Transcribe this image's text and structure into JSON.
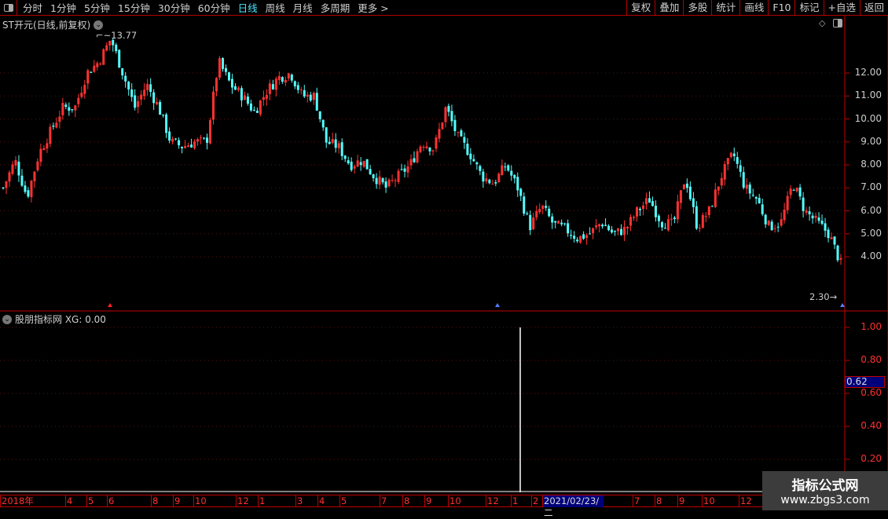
{
  "toolbar": {
    "periods": [
      "分时",
      "1分钟",
      "5分钟",
      "15分钟",
      "30分钟",
      "60分钟",
      "日线",
      "周线",
      "月线",
      "多周期",
      "更多 >"
    ],
    "active_period": "日线",
    "right_buttons": [
      "复权",
      "叠加",
      "多股",
      "统计",
      "画线",
      "F10",
      "标记",
      "+自选",
      "返回"
    ]
  },
  "main": {
    "title": "ST开元(日线,前复权)",
    "max_label": "13.77",
    "min_label": "2.30",
    "price_ticks": [
      "12.00",
      "11.00",
      "10.00",
      "9.00",
      "8.00",
      "7.00",
      "6.00",
      "5.00",
      "4.00"
    ]
  },
  "indicator": {
    "title": "股朋指标网 XG: 0.00",
    "ticks": [
      "1.00",
      "0.80",
      "0.60",
      "0.40",
      "0.20"
    ],
    "current_value": "0.62"
  },
  "time_axis": [
    "2018年",
    "4",
    "5",
    "6",
    "8",
    "9",
    "10",
    "12",
    "1",
    "3",
    "4",
    "5",
    "7",
    "8",
    "9",
    "10",
    "12",
    "1",
    "2",
    "2021/02/23/二",
    "7",
    "8",
    "9",
    "10",
    "12"
  ],
  "watermark": {
    "name": "指标公式网",
    "url": "www.zbgs3.com"
  },
  "colors": {
    "up": "#ff3232",
    "down": "#54ffff",
    "axis": "#c00000",
    "selected_bg": "#00007a"
  },
  "chart_data": {
    "type": "candlestick",
    "ylim": [
      2.3,
      13.77
    ],
    "close_path": [
      7.0,
      8.2,
      6.6,
      8.5,
      9.5,
      10.5,
      10.5,
      12.0,
      12.5,
      13.5,
      12.0,
      10.5,
      11.5,
      10.5,
      9.0,
      8.8,
      9.0,
      9.0,
      12.5,
      11.5,
      11.0,
      10.3,
      11.2,
      11.8,
      12.0,
      11.0,
      11.0,
      9.0,
      8.8,
      8.0,
      8.2,
      7.5,
      7.0,
      7.5,
      8.0,
      9.0,
      8.7,
      10.5,
      9.2,
      8.5,
      7.5,
      7.2,
      8.0,
      7.0,
      5.3,
      6.2,
      5.4,
      5.2,
      4.8,
      5.0,
      5.5,
      5.0,
      5.2,
      6.0,
      6.5,
      5.5,
      5.4,
      7.5,
      5.3,
      6.0,
      7.5,
      8.5,
      7.0,
      6.5,
      5.3,
      5.5,
      7.2,
      6.0,
      5.5,
      5.0,
      3.7
    ],
    "indicator_series": {
      "name": "XG",
      "baseline": 0,
      "spike_value": 1.0,
      "spike_date": "2021/02/23"
    }
  }
}
